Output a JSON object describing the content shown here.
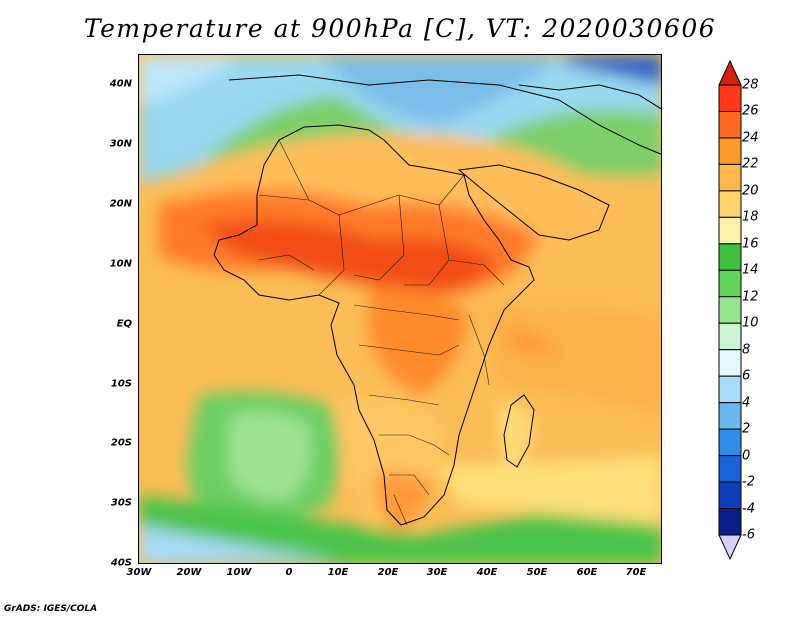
{
  "title": "Temperature at 900hPa [C], VT: 2020030606",
  "credit": "GrADS: IGES/COLA",
  "map": {
    "variable": "Temperature at 900hPa",
    "units": "C",
    "valid_time": "2020030606",
    "lat_labels": [
      "40N",
      "30N",
      "20N",
      "10N",
      "EQ",
      "10S",
      "20S",
      "30S",
      "40S"
    ],
    "lon_labels": [
      "30W",
      "20W",
      "10W",
      "0",
      "10E",
      "20E",
      "30E",
      "40E",
      "50E",
      "60E",
      "70E"
    ],
    "lat_range": [
      -40,
      45
    ],
    "lon_range": [
      -30,
      75
    ]
  },
  "colorbar": {
    "labels": [
      "28",
      "26",
      "24",
      "22",
      "20",
      "18",
      "16",
      "14",
      "12",
      "10",
      "8",
      "6",
      "4",
      "2",
      "0",
      "-2",
      "-4",
      "-6"
    ],
    "colors": [
      "#ff3a1a",
      "#ff6a23",
      "#ff9a2d",
      "#ffb94c",
      "#ffd36b",
      "#fff2a8",
      "#3fc03f",
      "#64d35c",
      "#98e38d",
      "#ccf5d6",
      "#e6f8ff",
      "#a9dcf7",
      "#69b9f0",
      "#2f8fe8",
      "#1b62d6",
      "#0f3fb8",
      "#0a1f8a",
      "#e0d8ff"
    ],
    "overflow_color": "#d42010",
    "underflow_color": "#d8d0ff"
  }
}
